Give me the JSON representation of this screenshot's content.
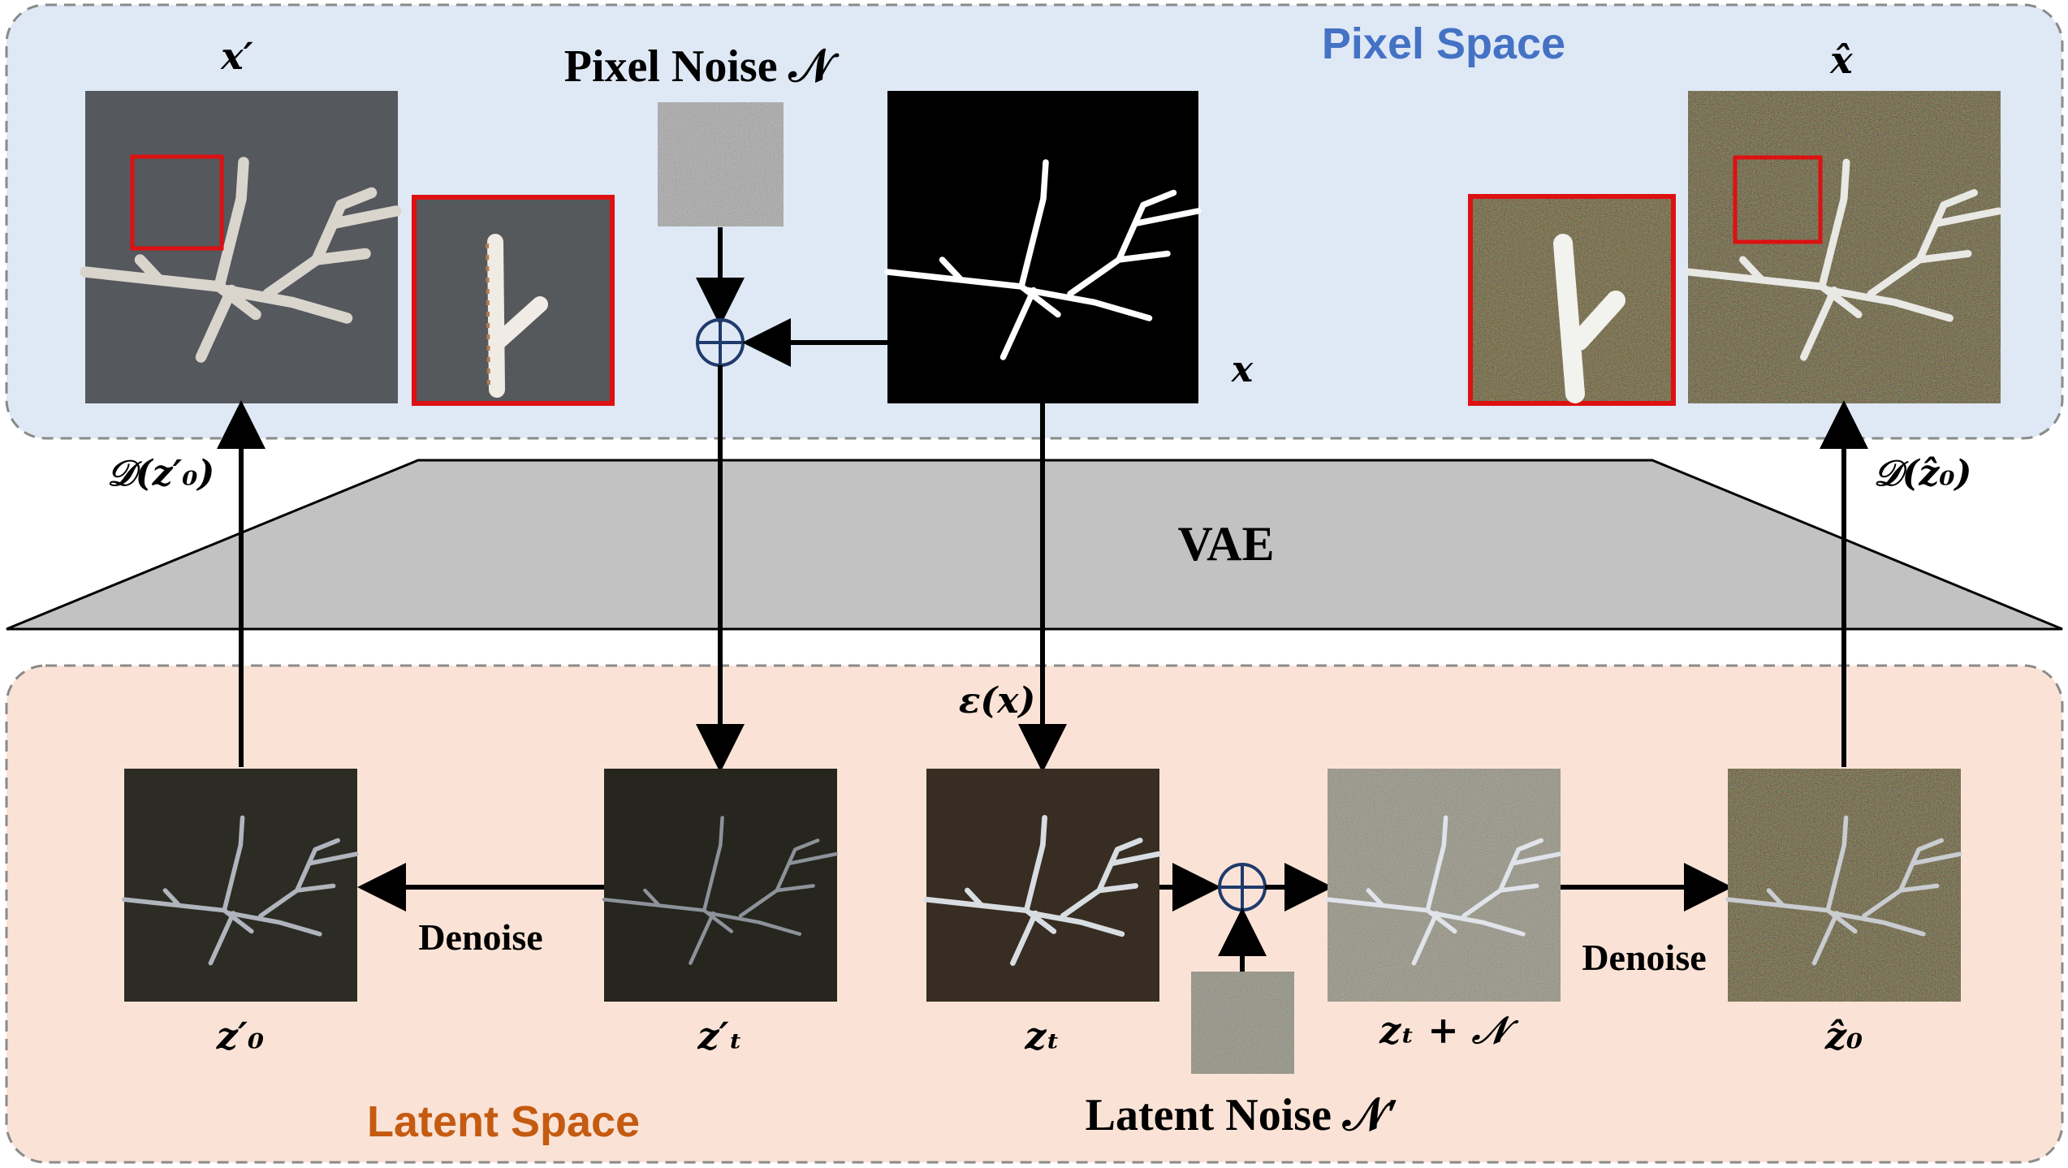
{
  "regions": {
    "pixel_space": "Pixel Space",
    "latent_space": "Latent Space",
    "vae": "VAE"
  },
  "labels": {
    "x_prime": "x′",
    "pixel_noise": "Pixel Noise 𝒩",
    "x_hat": "x̂",
    "x": "x",
    "decode_z0_prime": "𝒟(z′₀)",
    "decode_z0_hat": "𝒟(ẑ₀)",
    "encode_x": "ε(x)",
    "z0_prime": "z′₀",
    "zt_prime": "z′ₜ",
    "zt": "zₜ",
    "zt_plus_noise": "zₜ + 𝒩",
    "z0_hat": "ẑ₀",
    "latent_noise": "Latent Noise 𝒩′",
    "denoise_left": "Denoise",
    "denoise_right": "Denoise",
    "oplus": "⊕"
  },
  "colors": {
    "pixel_bg": "#dfe8f5",
    "latent_bg": "#fae3d6",
    "vae_fill": "#c2c2c2",
    "pixel_label": "#4472c4",
    "latent_label": "#c55a11",
    "zoom_border": "#dd1111"
  }
}
